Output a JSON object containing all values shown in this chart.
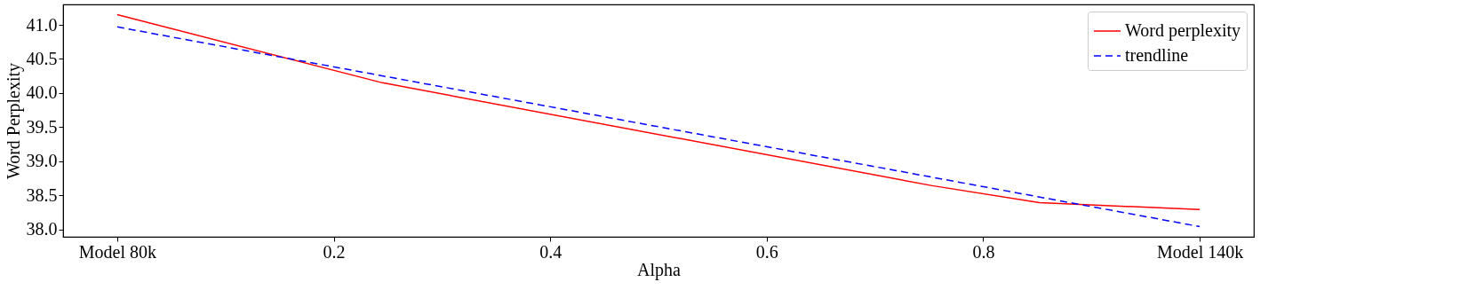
{
  "chart_data": {
    "type": "line",
    "xlabel": "Alpha",
    "ylabel": "Word Perplexity",
    "xlim": [
      -0.05,
      1.05
    ],
    "ylim": [
      37.89,
      41.3
    ],
    "xticks": [
      {
        "value": 0,
        "label": "Model 80k"
      },
      0.2,
      0.4,
      0.6,
      0.8,
      {
        "value": 1,
        "label": "Model 140k"
      }
    ],
    "yticks": [
      {
        "value": 38,
        "label": "38.0"
      },
      38.5,
      {
        "value": 39,
        "label": "39.0"
      },
      39.5,
      {
        "value": 40,
        "label": "40.0"
      },
      40.5,
      {
        "value": 41,
        "label": "41.0"
      }
    ],
    "series": [
      {
        "name": "Word perplexity",
        "color": "#ff0000",
        "line_style": "solid",
        "x": [
          0,
          0.245,
          0.753,
          0.852,
          1.0
        ],
        "values": [
          41.15,
          40.15,
          38.64,
          38.39,
          38.29
        ]
      },
      {
        "name": "trendline",
        "color": "#0000ff",
        "line_style": "dashed",
        "x": [
          0,
          1.0
        ],
        "values": [
          40.97,
          38.04
        ]
      }
    ],
    "legend": "top right",
    "grid": false,
    "marker": "none"
  }
}
